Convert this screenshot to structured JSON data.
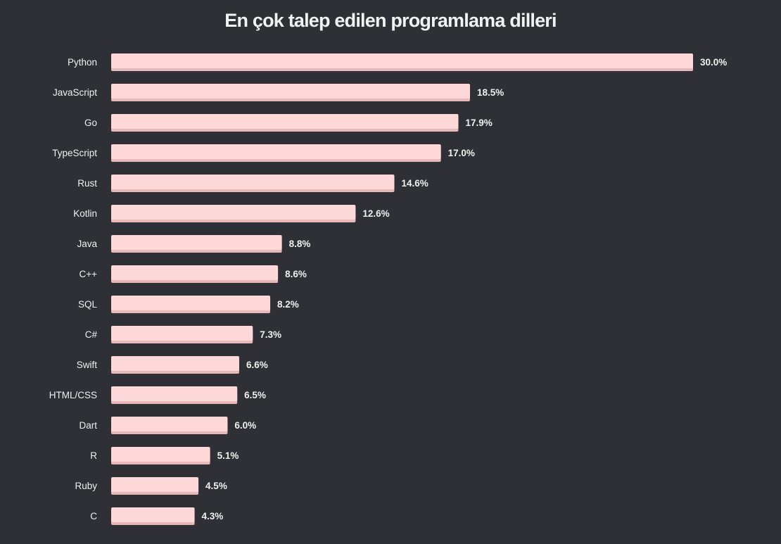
{
  "chart_data": {
    "type": "bar",
    "orientation": "horizontal",
    "title": "En çok talep edilen programlama dilleri",
    "categories": [
      "Python",
      "JavaScript",
      "Go",
      "TypeScript",
      "Rust",
      "Kotlin",
      "Java",
      "C++",
      "SQL",
      "C#",
      "Swift",
      "HTML/CSS",
      "Dart",
      "R",
      "Ruby",
      "C"
    ],
    "values": [
      30.0,
      18.5,
      17.9,
      17.0,
      14.6,
      12.6,
      8.8,
      8.6,
      8.2,
      7.3,
      6.6,
      6.5,
      6.0,
      5.1,
      4.5,
      4.3
    ],
    "value_labels": [
      "30.0%",
      "18.5%",
      "17.9%",
      "17.0%",
      "14.6%",
      "12.6%",
      "8.8%",
      "8.6%",
      "8.2%",
      "7.3%",
      "6.6%",
      "6.5%",
      "6.0%",
      "5.1%",
      "4.5%",
      "4.3%"
    ],
    "unit": "%",
    "xlim": [
      0,
      30
    ],
    "grid": false,
    "legend": "none",
    "colors": {
      "background": "#2e3035",
      "bar": "#ffd9d9",
      "bar_shadow": "#e8b9b9",
      "text": "#f0f0f0"
    }
  }
}
